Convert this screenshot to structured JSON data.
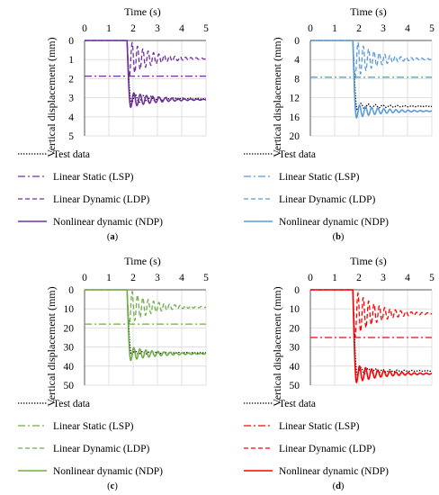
{
  "chart_data": [
    {
      "type": "line",
      "panel_label": "(a)",
      "xlabel": "Time (s)",
      "ylabel": "Vertical displacement (mm)",
      "xlim": [
        0,
        5
      ],
      "ylim": [
        0,
        5
      ],
      "y_inverted": true,
      "x_axis_position": "top",
      "x_ticks": [
        0,
        1,
        2,
        3,
        4,
        5
      ],
      "y_ticks": [
        0,
        1,
        2,
        3,
        4,
        5
      ],
      "grid": true,
      "legend_position": "below",
      "color": "#7030A0",
      "test_color": "#000000",
      "event_time": 1.75,
      "series": [
        {
          "name": "Test data",
          "style": "dotted",
          "key": "test",
          "final": 3.05,
          "peak": 3.3,
          "period": 0.32,
          "decay": 0.9,
          "rise": 0.18
        },
        {
          "name": "Linear Static (LSP)",
          "style": "dashdot",
          "key": "lsp",
          "constant": 1.87
        },
        {
          "name": "Linear Dynamic (LDP)",
          "style": "dashed",
          "key": "ldp",
          "final": 0.95,
          "peak": 1.88,
          "period": 0.22,
          "decay": 1.1,
          "rise": 0.1
        },
        {
          "name": "Nonlinear dynamic (NDP)",
          "style": "solid",
          "key": "ndp",
          "final": 3.1,
          "peak": 3.5,
          "period": 0.26,
          "decay": 0.95,
          "rise": 0.15
        }
      ]
    },
    {
      "type": "line",
      "panel_label": "(b)",
      "xlabel": "Time (s)",
      "ylabel": "Vertical displacement (mm)",
      "xlim": [
        0,
        5
      ],
      "ylim": [
        0,
        20
      ],
      "y_inverted": true,
      "x_axis_position": "top",
      "x_ticks": [
        0,
        1,
        2,
        3,
        4,
        5
      ],
      "y_ticks": [
        0,
        4,
        8,
        12,
        16,
        20
      ],
      "grid": true,
      "legend_position": "below",
      "color": "#5B9BD5",
      "test_color": "#000000",
      "event_time": 1.75,
      "series": [
        {
          "name": "Test data",
          "style": "dotted",
          "key": "test",
          "final": 13.8,
          "peak": 14.5,
          "period": 0.3,
          "decay": 0.9,
          "rise": 0.18
        },
        {
          "name": "Linear Static (LSP)",
          "style": "dashdot",
          "key": "lsp",
          "constant": 7.7
        },
        {
          "name": "Linear Dynamic (LDP)",
          "style": "dashed",
          "key": "ldp",
          "final": 3.9,
          "peak": 7.8,
          "period": 0.22,
          "decay": 1.1,
          "rise": 0.1
        },
        {
          "name": "Nonlinear dynamic (NDP)",
          "style": "solid",
          "key": "ndp",
          "final": 14.8,
          "peak": 16.2,
          "period": 0.25,
          "decay": 0.95,
          "rise": 0.15
        }
      ]
    },
    {
      "type": "line",
      "panel_label": "(c)",
      "xlabel": "Time (s)",
      "ylabel": "Vertical displacement (mm)",
      "xlim": [
        0,
        5
      ],
      "ylim": [
        0,
        50
      ],
      "y_inverted": true,
      "x_axis_position": "top",
      "x_ticks": [
        0,
        1,
        2,
        3,
        4,
        5
      ],
      "y_ticks": [
        0,
        10,
        20,
        30,
        40,
        50
      ],
      "grid": true,
      "legend_position": "below",
      "color": "#70AD47",
      "test_color": "#000000",
      "event_time": 1.75,
      "series": [
        {
          "name": "Test data",
          "style": "dotted",
          "key": "test",
          "final": 33,
          "peak": 34,
          "period": 0.3,
          "decay": 0.9,
          "rise": 0.18
        },
        {
          "name": "Linear Static (LSP)",
          "style": "dashdot",
          "key": "lsp",
          "constant": 18
        },
        {
          "name": "Linear Dynamic (LDP)",
          "style": "dashed",
          "key": "ldp",
          "final": 9,
          "peak": 18,
          "period": 0.22,
          "decay": 1.1,
          "rise": 0.1
        },
        {
          "name": "Nonlinear dynamic (NDP)",
          "style": "solid",
          "key": "ndp",
          "final": 33.5,
          "peak": 37,
          "period": 0.25,
          "decay": 0.95,
          "rise": 0.15
        }
      ]
    },
    {
      "type": "line",
      "panel_label": "(d)",
      "xlabel": "Time (s)",
      "ylabel": "Vertical displacement (mm)",
      "xlim": [
        0,
        5
      ],
      "ylim": [
        0,
        50
      ],
      "y_inverted": true,
      "x_axis_position": "top",
      "x_ticks": [
        0,
        1,
        2,
        3,
        4,
        5
      ],
      "y_ticks": [
        0,
        10,
        20,
        30,
        40,
        50
      ],
      "grid": true,
      "legend_position": "below",
      "color": "#FF0000",
      "test_color": "#000000",
      "event_time": 1.75,
      "series": [
        {
          "name": "Test data",
          "style": "dotted",
          "key": "test",
          "final": 42.5,
          "peak": 44.5,
          "period": 0.3,
          "decay": 0.9,
          "rise": 0.18
        },
        {
          "name": "Linear Static (LSP)",
          "style": "dashdot",
          "key": "lsp",
          "constant": 25
        },
        {
          "name": "Linear Dynamic (LDP)",
          "style": "dashed",
          "key": "ldp",
          "final": 12.5,
          "peak": 24.5,
          "period": 0.22,
          "decay": 1.1,
          "rise": 0.1
        },
        {
          "name": "Nonlinear dynamic (NDP)",
          "style": "solid",
          "key": "ndp",
          "final": 44,
          "peak": 48.5,
          "period": 0.25,
          "decay": 0.95,
          "rise": 0.15
        }
      ]
    }
  ]
}
